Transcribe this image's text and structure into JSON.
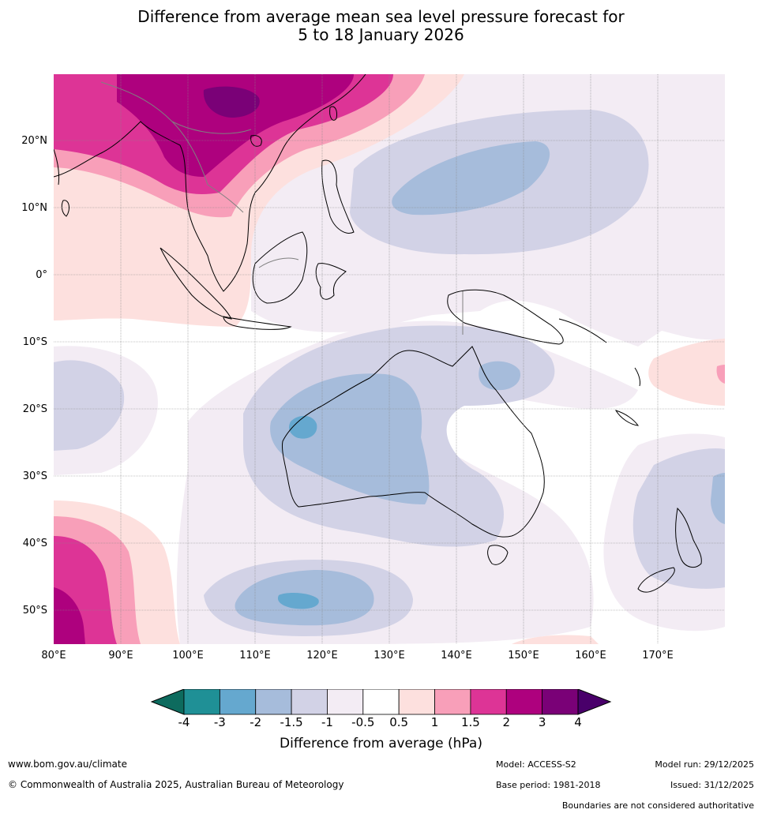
{
  "title_line1": "Difference from average mean sea level pressure forecast for",
  "title_line2": "5 to 18 January 2026",
  "map": {
    "lat_labels": [
      "20°N",
      "10°N",
      "0°",
      "10°S",
      "20°S",
      "30°S",
      "40°S",
      "50°S"
    ],
    "lon_labels": [
      "80°E",
      "90°E",
      "100°E",
      "110°E",
      "120°E",
      "130°E",
      "140°E",
      "150°E",
      "160°E",
      "170°E"
    ]
  },
  "legend": {
    "title": "Difference from average (hPa)",
    "ticks": [
      "-4",
      "-3",
      "-2",
      "-1.5",
      "-1",
      "-0.5",
      "0.5",
      "1",
      "1.5",
      "2",
      "3",
      "4"
    ],
    "colors": [
      "#0d6b5e",
      "#1f9096",
      "#65a8cf",
      "#a6bcdb",
      "#d2d2e6",
      "#f3ecf4",
      "#ffffff",
      "#fde0de",
      "#f89fb9",
      "#dd3496",
      "#ae017e",
      "#7a0177",
      "#49006a"
    ]
  },
  "footer": {
    "website": "www.bom.gov.au/climate",
    "copyright": "© Commonwealth of Australia 2025, Australian Bureau of Meteorology",
    "model": "Model: ACCESS-S2",
    "base_period": "Base period: 1981-2018",
    "model_run": "Model run: 29/12/2025",
    "issued": "Issued: 31/12/2025",
    "disclaimer": "Boundaries are not considered authoritative"
  }
}
